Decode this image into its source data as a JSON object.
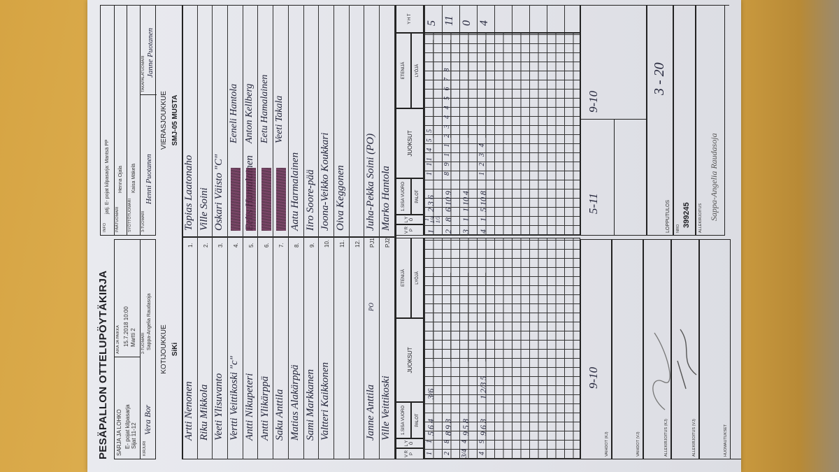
{
  "document": {
    "title": "PESÄPALLON OTTELUPÖYTÄKIRJA",
    "home_header": {
      "series_label": "SARJA JA LOHKO",
      "series_value": "E- pojat kilpasarja",
      "series_value2": "Sijat 11-12",
      "time_place_label": "AIKA JA PAIKKA",
      "time_place_value": "15.7.2018 10:00",
      "time_place_value2": "Martti 2",
      "scorer_label": "KIRJURI",
      "scorer_value": "Vera Bor",
      "umpire2_label": "2-TUOMARI",
      "umpire2_value": "Sappa-Angelia Raudasoja"
    },
    "away_header": {
      "info_label": "INFO",
      "info_value": "jatj. E- pojat kilpasarja: Mantsä PP",
      "head_umpire_label": "PÄÄTUOMARI",
      "head_umpire_value": "Henna Ojala",
      "pitch_umpire_label": "SYÖTTÖTUOMARI",
      "pitch_umpire_value": "Kaisa Mäkelä",
      "umpire3_label": "3-TUOMARI",
      "umpire3_value": "Henni Puotanen",
      "back_umpire_label": "TAKAPALATUOMARI",
      "back_umpire_value": "Janne Puotanen"
    },
    "home_team": {
      "label": "KOTIJOUKKUE",
      "name": "SiKi",
      "players": [
        "Artti Nenonen",
        "Riku Mikkola",
        "Veeti Ylisuvanto",
        "Vertti Veittikoski \"c\"",
        "Antti Nikupeteri",
        "Antti Ylikärppä",
        "Saku Anttila",
        "Matias Alakärppä",
        "Sami Markkanen",
        "Valtteri Kaikkonen",
        "",
        ""
      ],
      "pj1": "Janne Anttila",
      "pj1_note": "PO",
      "pj2": "Ville Veittikoski"
    },
    "away_team": {
      "label": "VIERASJOUKKUE",
      "name": "SMJ-05 MUSTA",
      "players": [
        {
          "name": "Topias Laatonaho"
        },
        {
          "name": "Ville Soini"
        },
        {
          "name": "Oskari Väisto \"C\""
        },
        {
          "name": "",
          "struck": true,
          "sub": "Eeneli Hantola"
        },
        {
          "name": "Eelis Hamalainen",
          "struck": true,
          "sub": "Anton Kellberg"
        },
        {
          "name": "",
          "struck": true,
          "sub": "Eetu Hamalainen"
        },
        {
          "name": "",
          "struck": true,
          "sub": "Veeti Takala"
        },
        {
          "name": "Aatu Harmalainen"
        },
        {
          "name": "Iiro Soore-pää"
        },
        {
          "name": "Joona-Veikko Koukkari"
        },
        {
          "name": "Oiva Keggonen"
        },
        {
          "name": ""
        }
      ],
      "pj1": "Juha-Pekka Soini (PO)",
      "pj2": "Marko Hantola"
    },
    "numbers": [
      "1.",
      "2.",
      "3.",
      "4.",
      "5.",
      "6.",
      "7.",
      "8.",
      "9.",
      "10.",
      "11.",
      "12.",
      "PJ1.",
      "PJ2."
    ],
    "grid_headers": {
      "vrp": "V R P",
      "lyo": "L Y Ö",
      "sisa": "1.SISA VUORO",
      "palot": "PALOT",
      "juoksut": "JUOKSUT",
      "etenija": "ETENIJÄ",
      "lyoja": "LYÖJÄ",
      "yht": "Y H T"
    },
    "home_innings": [
      [
        "1",
        "1",
        "5 6 4",
        "3/6"
      ],
      [
        "2",
        "8",
        "8 9 3",
        ""
      ],
      [
        "3/4",
        "4",
        "9 5 8",
        ""
      ],
      [
        "4",
        "9",
        "9 6 3",
        "1 2/3 5"
      ]
    ],
    "away_innings": [
      {
        "vrp": "1",
        "lyo": "1 1/4 1/3",
        "palot": "2 3 6",
        "runs": "1 11 4 5 5",
        "yht": "5"
      },
      {
        "vrp": "2",
        "lyo": "8",
        "palot": "6 10 9",
        "runs": "8 9 1 1 2 3 4 4 5 6 7 8",
        "yht": "11"
      },
      {
        "vrp": "3",
        "lyo": "1",
        "palot": "1 10 4",
        "runs": "",
        "yht": "0"
      },
      {
        "vrp": "4",
        "lyo": "1",
        "palot": "5 10 8",
        "runs": "1 2 3 4",
        "yht": "4"
      }
    ],
    "footer": {
      "subs_home_label": "VAIHDOT (KJ)",
      "subs_away_label": "VAIHDOT (VJ)",
      "sign_home_label": "ALLEKIRJOITUS (KJ)",
      "sign_away_label": "ALLEKIRJOITUS (VJ)",
      "remarks_label": "HUOMAUTUKSET",
      "home_period_score": "9-10",
      "away_period_score_1": "5-11",
      "away_period_score_2": "9-10",
      "final_label": "LOPPUTULOS",
      "final_value": "3 - 20",
      "nro_label": "NRO",
      "nro_value": "399245",
      "signature_label": "ALLEKIRJOITUS",
      "signature_value": "Sappa-Angelia Raudasoja"
    },
    "colors": {
      "paper": "#e6e7ec",
      "ink": "#23253a",
      "table": "#d9a849",
      "strike": "#5a2446"
    }
  }
}
